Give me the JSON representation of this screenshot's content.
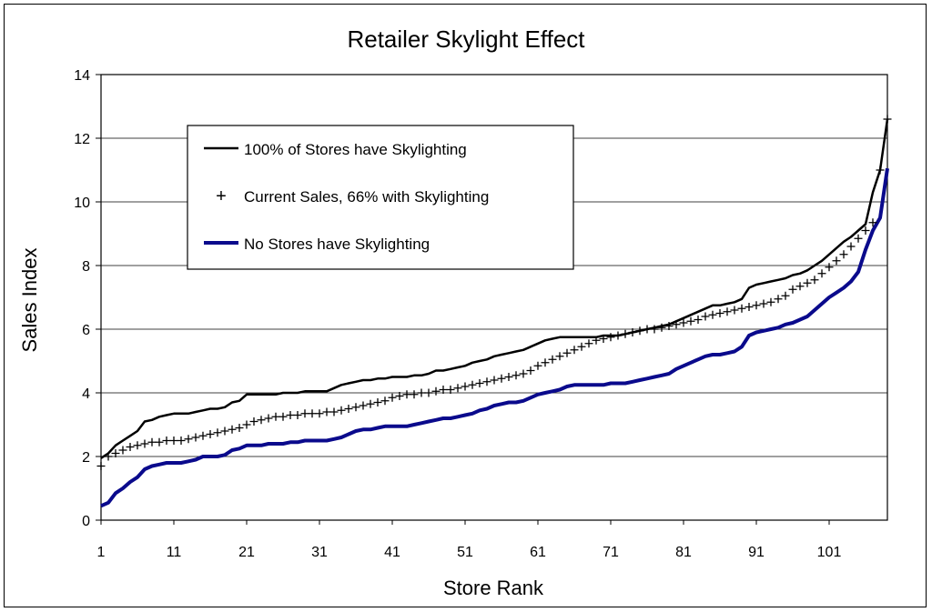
{
  "chart_data": {
    "type": "line",
    "title": "Retailer Skylight Effect",
    "xlabel": "Store Rank",
    "ylabel": "Sales Index",
    "xlim": [
      1,
      109
    ],
    "ylim": [
      0,
      14
    ],
    "x_ticks": [
      "1",
      "11",
      "21",
      "31",
      "41",
      "51",
      "61",
      "71",
      "81",
      "91",
      "101"
    ],
    "y_ticks": [
      "0",
      "2",
      "4",
      "6",
      "8",
      "10",
      "12",
      "14"
    ],
    "grid": "horizontal",
    "legend_position": "upper-left inside plot",
    "series": [
      {
        "name": "100% of Stores have Skylighting",
        "style": "line",
        "color": "#000000",
        "values": [
          1.95,
          2.1,
          2.35,
          2.5,
          2.65,
          2.8,
          3.1,
          3.15,
          3.25,
          3.3,
          3.35,
          3.35,
          3.35,
          3.4,
          3.45,
          3.5,
          3.5,
          3.55,
          3.7,
          3.75,
          3.95,
          3.95,
          3.95,
          3.95,
          3.95,
          4.0,
          4.0,
          4.0,
          4.05,
          4.05,
          4.05,
          4.05,
          4.15,
          4.25,
          4.3,
          4.35,
          4.4,
          4.4,
          4.45,
          4.45,
          4.5,
          4.5,
          4.5,
          4.55,
          4.55,
          4.6,
          4.7,
          4.7,
          4.75,
          4.8,
          4.85,
          4.95,
          5.0,
          5.05,
          5.15,
          5.2,
          5.25,
          5.3,
          5.35,
          5.45,
          5.55,
          5.65,
          5.7,
          5.75,
          5.75,
          5.75,
          5.75,
          5.75,
          5.75,
          5.8,
          5.8,
          5.8,
          5.85,
          5.9,
          5.95,
          6.0,
          6.05,
          6.1,
          6.15,
          6.25,
          6.35,
          6.45,
          6.55,
          6.65,
          6.75,
          6.75,
          6.8,
          6.85,
          6.95,
          7.3,
          7.4,
          7.45,
          7.5,
          7.55,
          7.6,
          7.7,
          7.75,
          7.85,
          8.0,
          8.15,
          8.35,
          8.55,
          8.75,
          8.9,
          9.1,
          9.3,
          10.3,
          11.0,
          12.6
        ]
      },
      {
        "name": "Current Sales, 66% with Skylighting",
        "style": "markers",
        "marker": "+",
        "color": "#000000",
        "values": [
          1.7,
          2.0,
          2.1,
          2.2,
          2.3,
          2.35,
          2.4,
          2.45,
          2.45,
          2.5,
          2.5,
          2.5,
          2.55,
          2.6,
          2.65,
          2.7,
          2.75,
          2.8,
          2.85,
          2.9,
          3.0,
          3.1,
          3.15,
          3.2,
          3.25,
          3.25,
          3.3,
          3.3,
          3.35,
          3.35,
          3.35,
          3.4,
          3.4,
          3.45,
          3.5,
          3.55,
          3.6,
          3.65,
          3.7,
          3.75,
          3.85,
          3.9,
          3.95,
          3.95,
          4.0,
          4.0,
          4.05,
          4.1,
          4.1,
          4.15,
          4.2,
          4.25,
          4.3,
          4.35,
          4.4,
          4.45,
          4.5,
          4.55,
          4.6,
          4.7,
          4.85,
          4.95,
          5.05,
          5.15,
          5.25,
          5.35,
          5.45,
          5.55,
          5.65,
          5.7,
          5.75,
          5.8,
          5.85,
          5.9,
          5.95,
          6.0,
          6.0,
          6.05,
          6.1,
          6.15,
          6.2,
          6.25,
          6.3,
          6.4,
          6.45,
          6.5,
          6.55,
          6.6,
          6.65,
          6.7,
          6.75,
          6.8,
          6.85,
          6.95,
          7.05,
          7.25,
          7.35,
          7.45,
          7.55,
          7.75,
          7.95,
          8.15,
          8.35,
          8.6,
          8.85,
          9.1,
          9.35,
          11.0,
          12.6
        ]
      },
      {
        "name": "No Stores have Skylighting",
        "style": "line",
        "color": "#0a0a8c",
        "values": [
          0.45,
          0.55,
          0.85,
          1.0,
          1.2,
          1.35,
          1.6,
          1.7,
          1.75,
          1.8,
          1.8,
          1.8,
          1.85,
          1.9,
          2.0,
          2.0,
          2.0,
          2.05,
          2.2,
          2.25,
          2.35,
          2.35,
          2.35,
          2.4,
          2.4,
          2.4,
          2.45,
          2.45,
          2.5,
          2.5,
          2.5,
          2.5,
          2.55,
          2.6,
          2.7,
          2.8,
          2.85,
          2.85,
          2.9,
          2.95,
          2.95,
          2.95,
          2.95,
          3.0,
          3.05,
          3.1,
          3.15,
          3.2,
          3.2,
          3.25,
          3.3,
          3.35,
          3.45,
          3.5,
          3.6,
          3.65,
          3.7,
          3.7,
          3.75,
          3.85,
          3.95,
          4.0,
          4.05,
          4.1,
          4.2,
          4.25,
          4.25,
          4.25,
          4.25,
          4.25,
          4.3,
          4.3,
          4.3,
          4.35,
          4.4,
          4.45,
          4.5,
          4.55,
          4.6,
          4.75,
          4.85,
          4.95,
          5.05,
          5.15,
          5.2,
          5.2,
          5.25,
          5.3,
          5.45,
          5.8,
          5.9,
          5.95,
          6.0,
          6.05,
          6.15,
          6.2,
          6.3,
          6.4,
          6.6,
          6.8,
          7.0,
          7.15,
          7.3,
          7.5,
          7.8,
          8.5,
          9.1,
          9.5,
          11.05
        ]
      }
    ]
  }
}
